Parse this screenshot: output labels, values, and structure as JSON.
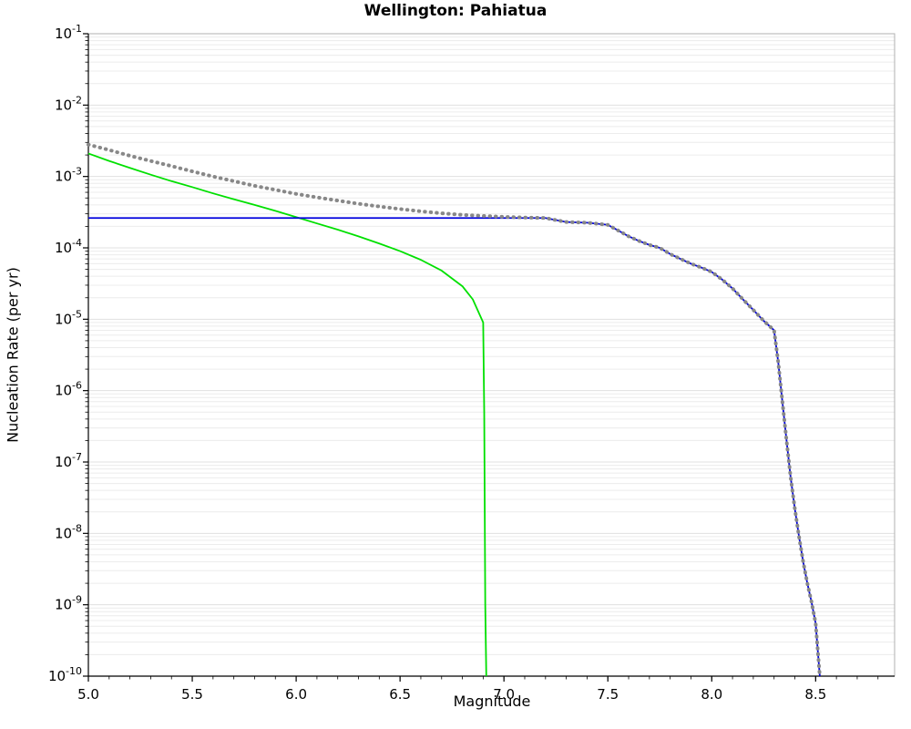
{
  "chart_data": {
    "type": "line",
    "title": "Wellington: Pahiatua",
    "xlabel": "Magnitude",
    "ylabel": "Nucleation Rate (per yr)",
    "xlim": [
      5.0,
      8.88
    ],
    "ylim": [
      1e-10,
      0.1
    ],
    "grid": "minor-horizontal",
    "legend": "none",
    "x_ticks": [
      5.0,
      5.5,
      6.0,
      6.5,
      7.0,
      7.5,
      8.0,
      8.5
    ],
    "x_tick_labels": [
      "5.0",
      "5.5",
      "6.0",
      "6.5",
      "7.0",
      "7.5",
      "8.0",
      "8.5"
    ],
    "x_minor_step": 0.1,
    "y_tick_exponents": [
      -1,
      -2,
      -3,
      -4,
      -5,
      -6,
      -7,
      -8,
      -9,
      -10
    ],
    "y_tick_labels": [
      "10-1",
      "10-2",
      "10-3",
      "10-4",
      "10-5",
      "10-6",
      "10-7",
      "10-8",
      "10-9",
      "10-10"
    ],
    "series": [
      {
        "name": "gray-dotted",
        "color": "#888888",
        "style": "dotted",
        "width": 4,
        "points": [
          [
            5.0,
            0.0028
          ],
          [
            5.1,
            0.00235
          ],
          [
            5.2,
            0.00195
          ],
          [
            5.3,
            0.00165
          ],
          [
            5.4,
            0.0014
          ],
          [
            5.5,
            0.00118
          ],
          [
            5.6,
            0.001
          ],
          [
            5.7,
            0.00086
          ],
          [
            5.8,
            0.00074
          ],
          [
            5.9,
            0.00065
          ],
          [
            6.0,
            0.00057
          ],
          [
            6.1,
            0.00051
          ],
          [
            6.2,
            0.00046
          ],
          [
            6.3,
            0.000415
          ],
          [
            6.4,
            0.00038
          ],
          [
            6.5,
            0.00035
          ],
          [
            6.6,
            0.000325
          ],
          [
            6.7,
            0.000305
          ],
          [
            6.8,
            0.00029
          ],
          [
            6.9,
            0.00028
          ],
          [
            7.0,
            0.000272
          ],
          [
            7.1,
            0.000266
          ],
          [
            7.2,
            0.000262
          ],
          [
            7.25,
            0.000245
          ],
          [
            7.3,
            0.00023
          ],
          [
            7.4,
            0.000225
          ],
          [
            7.5,
            0.00021
          ],
          [
            7.55,
            0.000175
          ],
          [
            7.6,
            0.000145
          ],
          [
            7.65,
            0.000125
          ],
          [
            7.7,
            0.00011
          ],
          [
            7.75,
            0.0001
          ],
          [
            7.8,
            8.2e-05
          ],
          [
            7.85,
            7e-05
          ],
          [
            7.9,
            6e-05
          ],
          [
            7.95,
            5.3e-05
          ],
          [
            8.0,
            4.6e-05
          ],
          [
            8.05,
            3.6e-05
          ],
          [
            8.1,
            2.7e-05
          ],
          [
            8.15,
            1.9e-05
          ],
          [
            8.2,
            1.35e-05
          ],
          [
            8.25,
            9.5e-06
          ],
          [
            8.3,
            7e-06
          ],
          [
            8.32,
            2.5e-06
          ],
          [
            8.34,
            7e-07
          ],
          [
            8.36,
            2e-07
          ],
          [
            8.38,
            6e-08
          ],
          [
            8.4,
            2.2e-08
          ],
          [
            8.42,
            9e-09
          ],
          [
            8.44,
            4e-09
          ],
          [
            8.46,
            2e-09
          ],
          [
            8.48,
            1.1e-09
          ],
          [
            8.5,
            5.5e-10
          ],
          [
            8.52,
            1e-10
          ]
        ]
      },
      {
        "name": "green-solid",
        "color": "#00e000",
        "style": "solid",
        "width": 1.8,
        "points": [
          [
            5.0,
            0.0021
          ],
          [
            5.1,
            0.00165
          ],
          [
            5.2,
            0.00132
          ],
          [
            5.3,
            0.00106
          ],
          [
            5.4,
            0.00086
          ],
          [
            5.5,
            0.00071
          ],
          [
            5.6,
            0.00058
          ],
          [
            5.7,
            0.00048
          ],
          [
            5.8,
            0.0004
          ],
          [
            5.9,
            0.00033
          ],
          [
            6.0,
            0.00027
          ],
          [
            6.1,
            0.00022
          ],
          [
            6.2,
            0.00018
          ],
          [
            6.3,
            0.000145
          ],
          [
            6.4,
            0.000115
          ],
          [
            6.5,
            9e-05
          ],
          [
            6.6,
            6.8e-05
          ],
          [
            6.7,
            4.8e-05
          ],
          [
            6.8,
            2.9e-05
          ],
          [
            6.85,
            1.9e-05
          ],
          [
            6.9,
            9e-06
          ],
          [
            6.905,
            5e-07
          ],
          [
            6.91,
            1e-09
          ],
          [
            6.915,
            1e-10
          ]
        ]
      },
      {
        "name": "blue-solid",
        "color": "#0000dd",
        "style": "solid",
        "width": 1.8,
        "points": [
          [
            5.0,
            0.000262
          ],
          [
            6.0,
            0.000262
          ],
          [
            7.0,
            0.000262
          ],
          [
            7.2,
            0.000262
          ],
          [
            7.25,
            0.000245
          ],
          [
            7.3,
            0.00023
          ],
          [
            7.4,
            0.000225
          ],
          [
            7.5,
            0.00021
          ],
          [
            7.55,
            0.000175
          ],
          [
            7.6,
            0.000145
          ],
          [
            7.65,
            0.000125
          ],
          [
            7.7,
            0.00011
          ],
          [
            7.75,
            0.0001
          ],
          [
            7.8,
            8.2e-05
          ],
          [
            7.85,
            7e-05
          ],
          [
            7.9,
            6e-05
          ],
          [
            7.95,
            5.3e-05
          ],
          [
            8.0,
            4.6e-05
          ],
          [
            8.05,
            3.6e-05
          ],
          [
            8.1,
            2.7e-05
          ],
          [
            8.15,
            1.9e-05
          ],
          [
            8.2,
            1.35e-05
          ],
          [
            8.25,
            9.5e-06
          ],
          [
            8.3,
            7e-06
          ],
          [
            8.32,
            2.5e-06
          ],
          [
            8.34,
            7e-07
          ],
          [
            8.36,
            2e-07
          ],
          [
            8.38,
            6e-08
          ],
          [
            8.4,
            2.2e-08
          ],
          [
            8.42,
            9e-09
          ],
          [
            8.44,
            4e-09
          ],
          [
            8.46,
            2e-09
          ],
          [
            8.48,
            1.1e-09
          ],
          [
            8.5,
            5.5e-10
          ],
          [
            8.52,
            1e-10
          ]
        ]
      }
    ],
    "plot_colors": {
      "frame": "#b0b0b0",
      "axis": "#000000",
      "grid_major": "#e0e0e0",
      "grid_minor": "#ececec",
      "tick": "#000000",
      "text": "#000000"
    }
  }
}
